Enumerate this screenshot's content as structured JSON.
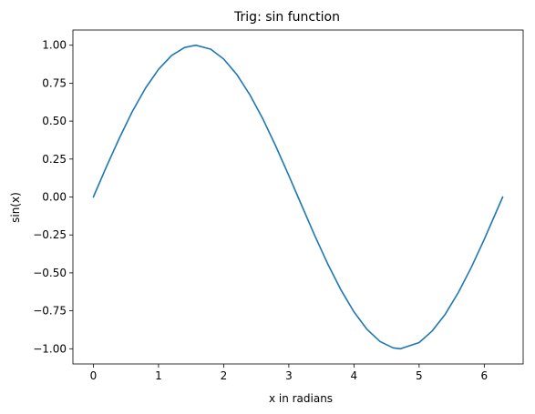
{
  "chart_data": {
    "type": "line",
    "title": "Trig: sin function",
    "xlabel": "x in radians",
    "ylabel": "sin(x)",
    "xlim": [
      -0.314,
      6.597
    ],
    "ylim": [
      -1.1,
      1.1
    ],
    "xticks": [
      0,
      1,
      2,
      3,
      4,
      5,
      6
    ],
    "xtick_labels": [
      "0",
      "1",
      "2",
      "3",
      "4",
      "5",
      "6"
    ],
    "yticks": [
      -1.0,
      -0.75,
      -0.5,
      -0.25,
      0.0,
      0.25,
      0.5,
      0.75,
      1.0
    ],
    "ytick_labels": [
      "−1.00",
      "−0.75",
      "−0.50",
      "−0.25",
      "0.00",
      "0.25",
      "0.50",
      "0.75",
      "1.00"
    ],
    "grid": false,
    "series": [
      {
        "color": "#1f77b4",
        "x": [
          0.0,
          0.2,
          0.4,
          0.6,
          0.8,
          1.0,
          1.2,
          1.4,
          1.5708,
          1.8,
          2.0,
          2.2,
          2.4,
          2.6,
          2.8,
          3.0,
          3.1416,
          3.4,
          3.6,
          3.8,
          4.0,
          4.2,
          4.4,
          4.6,
          4.7124,
          5.0,
          5.2,
          5.4,
          5.6,
          5.8,
          6.0,
          6.2832
        ],
        "y": [
          0.0,
          0.199,
          0.389,
          0.565,
          0.717,
          0.841,
          0.932,
          0.985,
          1.0,
          0.974,
          0.909,
          0.808,
          0.675,
          0.516,
          0.335,
          0.141,
          0.0,
          -0.256,
          -0.443,
          -0.612,
          -0.757,
          -0.872,
          -0.952,
          -0.994,
          -1.0,
          -0.959,
          -0.883,
          -0.773,
          -0.631,
          -0.465,
          -0.279,
          0.0
        ]
      }
    ]
  }
}
